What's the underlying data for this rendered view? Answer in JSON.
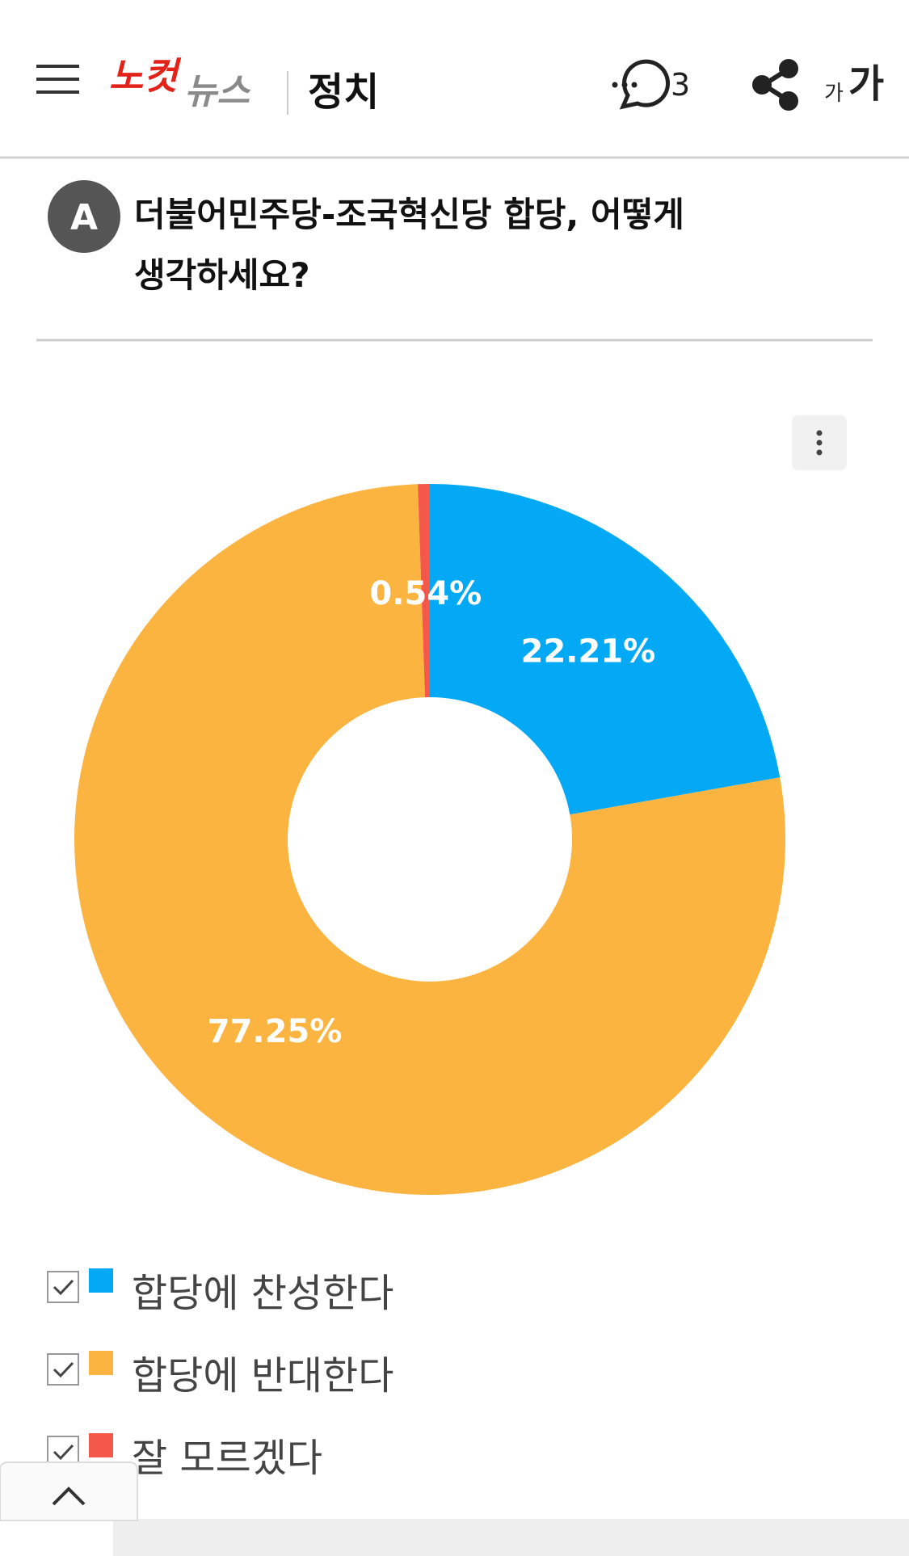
{
  "header": {
    "logo_red": "노컷",
    "logo_grey": "뉴스",
    "section": "정치",
    "comment_count": "3",
    "font_small": "가",
    "font_large": "가"
  },
  "question": {
    "badge": "A",
    "title_line1": "더불어민주당-조국혁신당 합당, 어떻게",
    "title_line2": "생각하세요?"
  },
  "chart_data": {
    "type": "pie",
    "categories": [
      "합당에 찬성한다",
      "합당에 반대한다",
      "잘 모르겠다"
    ],
    "values": [
      22.21,
      77.25,
      0.54
    ],
    "value_labels": [
      "22.21%",
      "77.25%",
      "0.54%"
    ],
    "colors": [
      "#03a9f4",
      "#fbb440",
      "#f4584a"
    ]
  }
}
